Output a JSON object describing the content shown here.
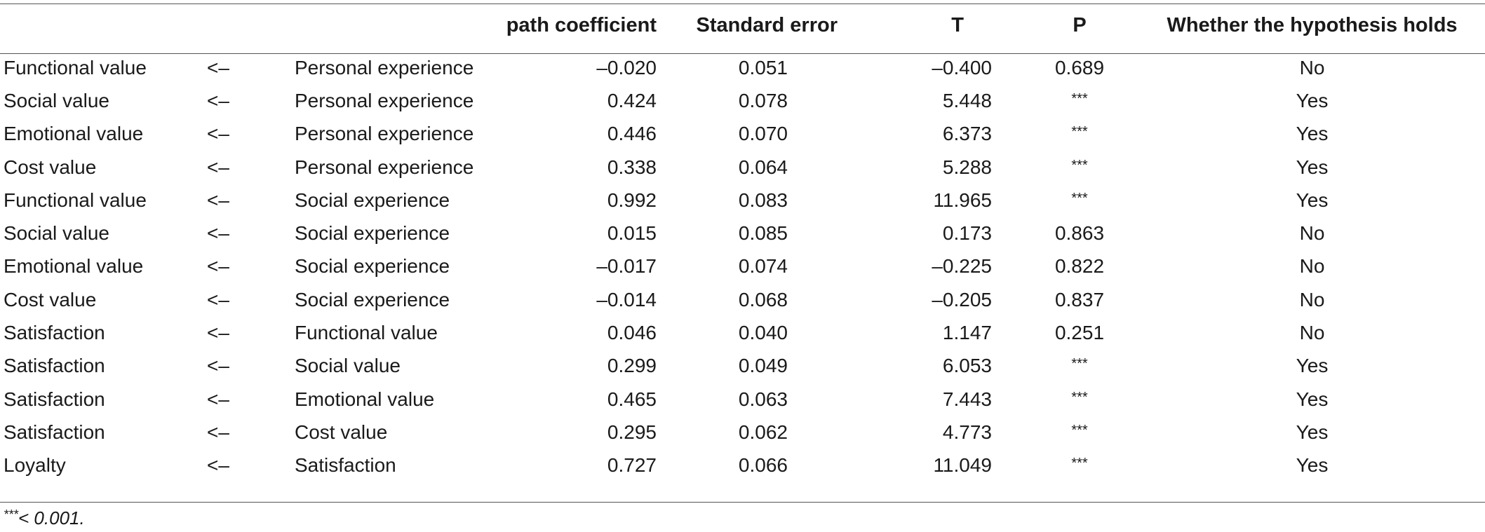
{
  "table": {
    "headers": {
      "dependent": "",
      "arrow": "",
      "independent": "",
      "path_coefficient": "path coefficient",
      "standard_error": "Standard error",
      "t": "T",
      "p": "P",
      "holds": "Whether the hypothesis holds"
    },
    "rows": [
      {
        "dependent": "Functional value",
        "arrow": "<–",
        "independent": "Personal experience",
        "path_coefficient": "–0.020",
        "standard_error": "0.051",
        "t": "–0.400",
        "p": "0.689",
        "holds": "No"
      },
      {
        "dependent": "Social value",
        "arrow": "<–",
        "independent": "Personal experience",
        "path_coefficient": "0.424",
        "standard_error": "0.078",
        "t": "5.448",
        "p": "***",
        "holds": "Yes"
      },
      {
        "dependent": "Emotional value",
        "arrow": "<–",
        "independent": "Personal experience",
        "path_coefficient": "0.446",
        "standard_error": "0.070",
        "t": "6.373",
        "p": "***",
        "holds": "Yes"
      },
      {
        "dependent": "Cost value",
        "arrow": "<–",
        "independent": "Personal experience",
        "path_coefficient": "0.338",
        "standard_error": "0.064",
        "t": "5.288",
        "p": "***",
        "holds": "Yes"
      },
      {
        "dependent": "Functional value",
        "arrow": "<–",
        "independent": "Social experience",
        "path_coefficient": "0.992",
        "standard_error": "0.083",
        "t": "11.965",
        "p": "***",
        "holds": "Yes"
      },
      {
        "dependent": "Social value",
        "arrow": "<–",
        "independent": "Social experience",
        "path_coefficient": "0.015",
        "standard_error": "0.085",
        "t": "0.173",
        "p": "0.863",
        "holds": "No"
      },
      {
        "dependent": "Emotional value",
        "arrow": "<–",
        "independent": "Social experience",
        "path_coefficient": "–0.017",
        "standard_error": "0.074",
        "t": "–0.225",
        "p": "0.822",
        "holds": "No"
      },
      {
        "dependent": "Cost value",
        "arrow": "<–",
        "independent": "Social experience",
        "path_coefficient": "–0.014",
        "standard_error": "0.068",
        "t": "–0.205",
        "p": "0.837",
        "holds": "No"
      },
      {
        "dependent": "Satisfaction",
        "arrow": "<–",
        "independent": "Functional value",
        "path_coefficient": "0.046",
        "standard_error": "0.040",
        "t": "1.147",
        "p": "0.251",
        "holds": "No"
      },
      {
        "dependent": "Satisfaction",
        "arrow": "<–",
        "independent": "Social value",
        "path_coefficient": "0.299",
        "standard_error": "0.049",
        "t": "6.053",
        "p": "***",
        "holds": "Yes"
      },
      {
        "dependent": "Satisfaction",
        "arrow": "<–",
        "independent": "Emotional value",
        "path_coefficient": "0.465",
        "standard_error": "0.063",
        "t": "7.443",
        "p": "***",
        "holds": "Yes"
      },
      {
        "dependent": "Satisfaction",
        "arrow": "<–",
        "independent": "Cost value",
        "path_coefficient": "0.295",
        "standard_error": "0.062",
        "t": "4.773",
        "p": "***",
        "holds": "Yes"
      },
      {
        "dependent": "Loyalty",
        "arrow": "<–",
        "independent": "Satisfaction",
        "path_coefficient": "0.727",
        "standard_error": "0.066",
        "t": "11.049",
        "p": "***",
        "holds": "Yes"
      }
    ]
  },
  "footnote": {
    "marker": "***",
    "text": "< 0.001."
  }
}
